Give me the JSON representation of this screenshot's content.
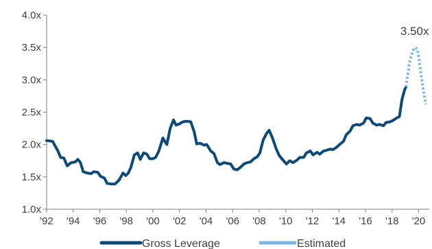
{
  "chart_data": {
    "type": "line",
    "title": "",
    "xlabel": "",
    "ylabel": "",
    "xlim": [
      1992,
      2020.8
    ],
    "ylim": [
      1.0,
      4.0
    ],
    "grid": false,
    "legend_position": "bottom",
    "x_tick_labels": [
      "'92",
      "'94",
      "'96",
      "'98",
      "'00",
      "'02",
      "'04",
      "'06",
      "'08",
      "'10",
      "'12",
      "'14",
      "'16",
      "'18",
      "'20"
    ],
    "x_tick_values": [
      1992,
      1994,
      1996,
      1998,
      2000,
      2002,
      2004,
      2006,
      2008,
      2010,
      2012,
      2014,
      2016,
      2018,
      2020
    ],
    "y_tick_labels": [
      "1.0x",
      "1.5x",
      "2.0x",
      "2.5x",
      "3.0x",
      "3.5x",
      "4.0x"
    ],
    "y_tick_values": [
      1.0,
      1.5,
      2.0,
      2.5,
      3.0,
      3.5,
      4.0
    ],
    "annotation": {
      "text": "3.50x",
      "x": 2019.75,
      "y": 3.5
    },
    "colors": {
      "gross_leverage": "#0d4a7a",
      "estimated": "#7fb7e4",
      "axis": "#7f7f7f",
      "text": "#404040"
    },
    "series": [
      {
        "name": "Gross Leverage",
        "style": "solid",
        "x": [
          1992.0,
          1992.45,
          1992.85,
          1993.05,
          1993.3,
          1993.55,
          1993.85,
          1994.15,
          1994.35,
          1994.55,
          1994.75,
          1995.05,
          1995.35,
          1995.55,
          1995.85,
          1996.05,
          1996.35,
          1996.55,
          1996.85,
          1997.15,
          1997.45,
          1997.75,
          1997.95,
          1998.15,
          1998.35,
          1998.6,
          1998.85,
          1999.05,
          1999.3,
          1999.55,
          1999.75,
          2000.0,
          2000.2,
          2000.45,
          2000.75,
          2001.05,
          2001.3,
          2001.55,
          2001.75,
          2002.0,
          2002.25,
          2002.55,
          2002.85,
          2003.1,
          2003.3,
          2003.55,
          2003.85,
          2004.05,
          2004.35,
          2004.6,
          2004.85,
          2005.05,
          2005.35,
          2005.55,
          2005.85,
          2006.1,
          2006.35,
          2006.6,
          2006.85,
          2007.1,
          2007.35,
          2007.6,
          2007.85,
          2008.05,
          2008.3,
          2008.55,
          2008.75,
          2009.0,
          2009.25,
          2009.5,
          2009.75,
          2010.05,
          2010.3,
          2010.55,
          2010.85,
          2011.05,
          2011.35,
          2011.55,
          2011.85,
          2012.05,
          2012.35,
          2012.55,
          2012.85,
          2013.05,
          2013.35,
          2013.55,
          2013.85,
          2014.05,
          2014.35,
          2014.55,
          2014.85,
          2015.05,
          2015.35,
          2015.55,
          2015.85,
          2016.05,
          2016.35,
          2016.55,
          2016.85,
          2017.05,
          2017.35,
          2017.55,
          2017.85,
          2018.05,
          2018.35,
          2018.55,
          2018.75,
          2018.95,
          2019.05
        ],
        "y": [
          2.06,
          2.05,
          1.9,
          1.8,
          1.79,
          1.67,
          1.72,
          1.73,
          1.77,
          1.72,
          1.58,
          1.56,
          1.55,
          1.58,
          1.57,
          1.51,
          1.48,
          1.4,
          1.39,
          1.39,
          1.45,
          1.56,
          1.52,
          1.56,
          1.65,
          1.84,
          1.87,
          1.77,
          1.87,
          1.85,
          1.78,
          1.78,
          1.8,
          1.9,
          2.1,
          2.0,
          2.25,
          2.38,
          2.3,
          2.32,
          2.35,
          2.36,
          2.35,
          2.2,
          2.01,
          2.02,
          1.99,
          2.0,
          1.9,
          1.86,
          1.72,
          1.69,
          1.72,
          1.71,
          1.7,
          1.62,
          1.61,
          1.65,
          1.7,
          1.72,
          1.73,
          1.78,
          1.81,
          1.87,
          2.07,
          2.17,
          2.22,
          2.1,
          1.95,
          1.83,
          1.77,
          1.7,
          1.75,
          1.72,
          1.76,
          1.8,
          1.8,
          1.87,
          1.9,
          1.84,
          1.88,
          1.85,
          1.9,
          1.91,
          1.93,
          1.92,
          1.96,
          2.0,
          2.05,
          2.15,
          2.21,
          2.29,
          2.31,
          2.3,
          2.33,
          2.41,
          2.4,
          2.33,
          2.3,
          2.31,
          2.29,
          2.34,
          2.35,
          2.37,
          2.41,
          2.43,
          2.7,
          2.85,
          2.89
        ]
      },
      {
        "name": "Estimated",
        "style": "dotted",
        "x": [
          2019.05,
          2019.3,
          2019.55,
          2019.75,
          2019.9,
          2020.05,
          2020.2,
          2020.4,
          2020.55
        ],
        "y": [
          2.89,
          3.25,
          3.45,
          3.5,
          3.47,
          3.3,
          3.05,
          2.78,
          2.62
        ]
      }
    ]
  }
}
